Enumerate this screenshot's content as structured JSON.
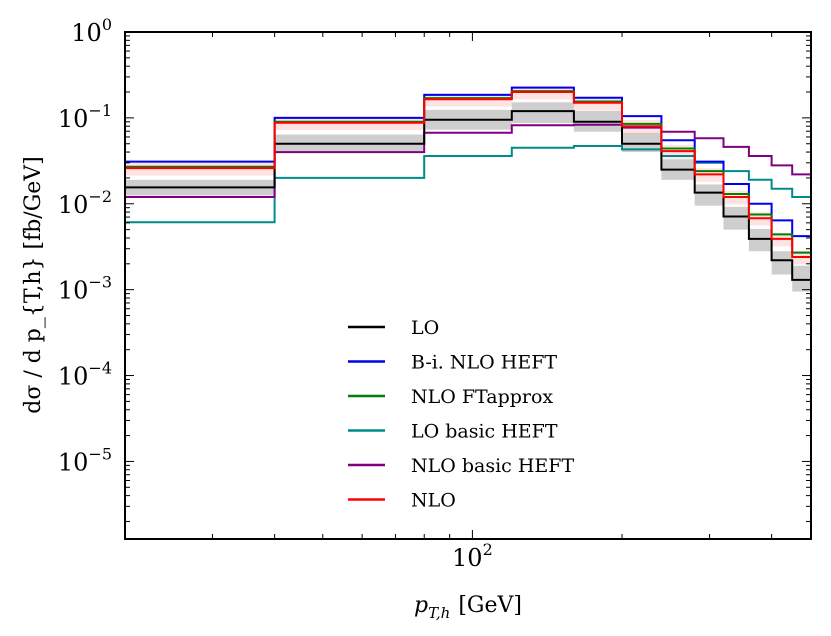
{
  "chart_data": {
    "type": "line",
    "step": "post",
    "xscale": "log",
    "yscale": "log",
    "xlim": [
      20,
      480
    ],
    "ylim": [
      1.25e-06,
      1
    ],
    "xlabel_main": "p",
    "xlabel_sub": "T,h",
    "xlabel_unit": "[GeV]",
    "ylabel": "dσ / d p_{T,h} [fb/GeV]",
    "x_ticks": [
      {
        "value": 100,
        "base": "10",
        "exp": "2"
      }
    ],
    "y_ticks": [
      {
        "value": 1,
        "base": "10",
        "exp": "0"
      },
      {
        "value": 0.1,
        "base": "10",
        "exp": "−1"
      },
      {
        "value": 0.01,
        "base": "10",
        "exp": "−2"
      },
      {
        "value": 0.001,
        "base": "10",
        "exp": "−3"
      },
      {
        "value": 0.0001,
        "base": "10",
        "exp": "−4"
      },
      {
        "value": 1e-05,
        "base": "10",
        "exp": "−5"
      }
    ],
    "bin_edges": [
      20,
      40,
      80,
      120,
      160,
      200,
      240,
      280,
      320,
      360,
      400,
      440,
      480
    ],
    "band": {
      "lo_values": [
        0.0125,
        0.039,
        0.073,
        0.087,
        0.069,
        0.04,
        0.019,
        0.0095,
        0.005,
        0.0028,
        0.0015,
        0.00095
      ],
      "hi_values": [
        0.019,
        0.064,
        0.124,
        0.152,
        0.121,
        0.067,
        0.033,
        0.0168,
        0.0092,
        0.0051,
        0.0028,
        0.0019
      ],
      "color": "#c6c6c6"
    },
    "series": [
      {
        "name": "LO",
        "color": "#000000",
        "values": [
          0.0155,
          0.05,
          0.095,
          0.12,
          0.09,
          0.05,
          0.025,
          0.0135,
          0.0071,
          0.0039,
          0.0022,
          0.0013
        ]
      },
      {
        "name": "B-i. NLO HEFT",
        "color": "#0000ee",
        "values": [
          0.031,
          0.1,
          0.185,
          0.225,
          0.172,
          0.105,
          0.055,
          0.031,
          0.017,
          0.01,
          0.0064,
          0.0042
        ]
      },
      {
        "name": "NLO FTapprox",
        "color": "#008000",
        "values": [
          0.027,
          0.09,
          0.17,
          0.205,
          0.155,
          0.085,
          0.044,
          0.024,
          0.013,
          0.0075,
          0.0044,
          0.0027
        ]
      },
      {
        "name": "LO basic HEFT",
        "color": "#008b8b",
        "values": [
          0.0061,
          0.02,
          0.036,
          0.045,
          0.047,
          0.043,
          0.036,
          0.03,
          0.024,
          0.019,
          0.015,
          0.012
        ]
      },
      {
        "name": "NLO basic HEFT",
        "color": "#800080",
        "values": [
          0.012,
          0.04,
          0.067,
          0.082,
          0.083,
          0.077,
          0.069,
          0.058,
          0.046,
          0.036,
          0.028,
          0.022
        ]
      },
      {
        "name": "NLO",
        "color": "#ff0000",
        "values": [
          0.026,
          0.088,
          0.165,
          0.2,
          0.15,
          0.08,
          0.041,
          0.022,
          0.012,
          0.0068,
          0.0039,
          0.0024
        ]
      }
    ],
    "legend_position": "lower-center",
    "grid": false
  }
}
